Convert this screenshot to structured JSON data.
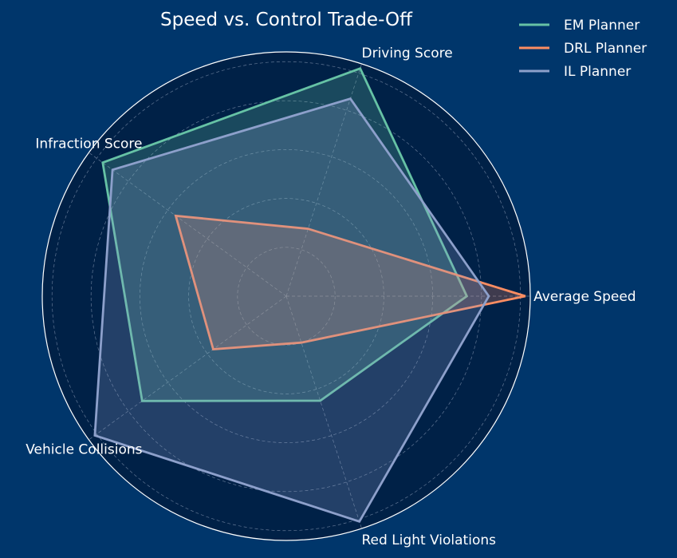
{
  "chart_data": {
    "type": "radar",
    "title": "Speed vs. Control Trade-Off",
    "axes": [
      "Average Speed",
      "Driving Score",
      "Infraction Score",
      "Vehicle Collisions",
      "Red Light Violations"
    ],
    "rlim": [
      0,
      1
    ],
    "grid": true,
    "legend_position": "top-right",
    "series": [
      {
        "name": "EM Planner",
        "color": "#66c2a5",
        "values": [
          0.74,
          0.98,
          0.93,
          0.73,
          0.45
        ]
      },
      {
        "name": "DRL Planner",
        "color": "#fc8d62",
        "values": [
          0.98,
          0.29,
          0.56,
          0.37,
          0.2
        ]
      },
      {
        "name": "IL Planner",
        "color": "#8da0cb",
        "values": [
          0.83,
          0.85,
          0.88,
          0.97,
          0.97
        ]
      }
    ]
  },
  "colors": {
    "background": "#00366b",
    "plot_background": "#002147",
    "grid": "#8a9bb5",
    "frame": "#ffffff",
    "text": "#ffffff"
  }
}
